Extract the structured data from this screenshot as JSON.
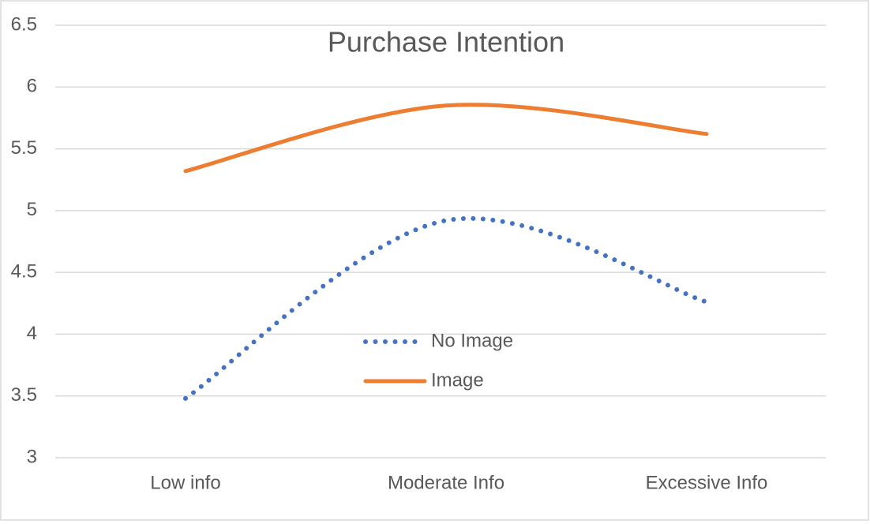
{
  "chart_data": {
    "type": "line",
    "title": "Purchase Intention",
    "categories": [
      "Low info",
      "Moderate Info",
      "Excessive Info"
    ],
    "series": [
      {
        "name": "No Image",
        "color": "#4472c4",
        "line_style": "dotted",
        "values": [
          3.48,
          4.92,
          4.26
        ]
      },
      {
        "name": "Image",
        "color": "#ed7d31",
        "line_style": "solid",
        "values": [
          5.32,
          5.85,
          5.62
        ]
      }
    ],
    "ylim": [
      3,
      6.5
    ],
    "yticks": [
      3,
      3.5,
      4,
      4.5,
      5,
      5.5,
      6,
      6.5
    ],
    "grid": true,
    "smooth": true,
    "legend": "center"
  }
}
